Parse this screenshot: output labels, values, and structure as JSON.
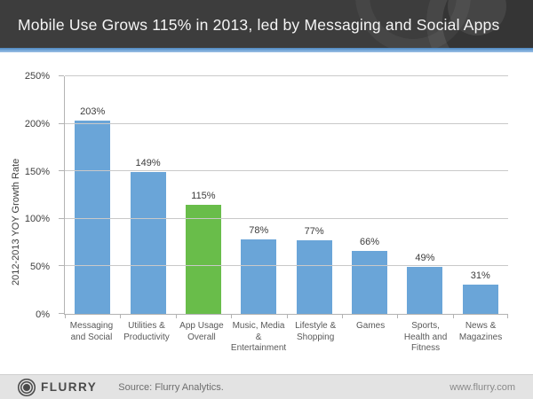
{
  "header": {
    "title": "Mobile Use Grows 115% in 2013, led by Messaging and Social Apps"
  },
  "chart_data": {
    "type": "bar",
    "title": "Mobile Use Grows 115% in 2013, led by Messaging and Social Apps",
    "categories": [
      "Messaging and Social",
      "Utilities & Productivity",
      "App Usage Overall",
      "Music, Media & Entertainment",
      "Lifestyle & Shopping",
      "Games",
      "Sports, Health and Fitness",
      "News & Magazines"
    ],
    "values": [
      203,
      149,
      115,
      78,
      77,
      66,
      49,
      31
    ],
    "value_labels": [
      "203%",
      "149%",
      "115%",
      "78%",
      "77%",
      "66%",
      "49%",
      "31%"
    ],
    "xlabel": "",
    "ylabel": "2012-2013 YOY Growth Rate",
    "ylim": [
      0,
      250
    ],
    "yticks": [
      0,
      50,
      100,
      150,
      200,
      250
    ],
    "ytick_labels": [
      "0%",
      "50%",
      "100%",
      "150%",
      "200%",
      "250%"
    ],
    "grid": true,
    "legend": false,
    "highlight_index": 2,
    "bar_color_default": "#6aa5d8",
    "bar_color_highlight": "#69bd4a"
  },
  "footer": {
    "brand": "FLURRY",
    "logo_icon": "flurry-logo-icon",
    "source": "Source: Flurry Analytics.",
    "website": "www.flurry.com"
  },
  "colors": {
    "header_bg": "#3d3d3d",
    "divider_blue": "#6fa3d6",
    "footer_bg": "#e3e3e3",
    "gridline": "#c9c9c9",
    "axis": "#b3b3b3"
  }
}
